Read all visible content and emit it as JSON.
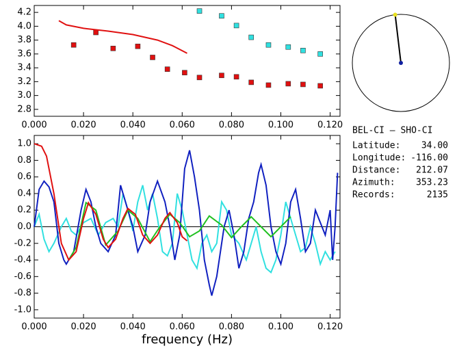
{
  "chart_data": [
    {
      "type": "scatter",
      "xlim": [
        0,
        0.124
      ],
      "ylim": [
        2.7,
        4.3
      ],
      "xticks": [
        {
          "value": 0,
          "label": "0.000"
        },
        {
          "value": 0.02,
          "label": "0.020"
        },
        {
          "value": 0.04,
          "label": "0.040"
        },
        {
          "value": 0.06,
          "label": "0.060"
        },
        {
          "value": 0.08,
          "label": "0.080"
        },
        {
          "value": 0.1,
          "label": "0.100"
        },
        {
          "value": 0.12,
          "label": "0.120"
        }
      ],
      "yticks": [
        {
          "value": 2.8,
          "label": "2.8"
        },
        {
          "value": 3.0,
          "label": "3.0"
        },
        {
          "value": 3.2,
          "label": "3.2"
        },
        {
          "value": 3.4,
          "label": "3.4"
        },
        {
          "value": 3.6,
          "label": "3.6"
        },
        {
          "value": 3.8,
          "label": "3.8"
        },
        {
          "value": 4.0,
          "label": "4.0"
        },
        {
          "value": 4.2,
          "label": "4.2"
        }
      ],
      "series": [
        {
          "style": "marker",
          "color": "#e01010",
          "x": [
            0.016,
            0.025,
            0.032,
            0.042,
            0.048,
            0.054,
            0.061,
            0.067,
            0.076,
            0.082,
            0.088,
            0.095,
            0.103,
            0.109,
            0.116
          ],
          "values": [
            3.73,
            3.91,
            3.68,
            3.71,
            3.55,
            3.38,
            3.33,
            3.26,
            3.29,
            3.27,
            3.19,
            3.15,
            3.17,
            3.16,
            3.14
          ]
        },
        {
          "style": "marker",
          "color": "#30e0e0",
          "x": [
            0.067,
            0.076,
            0.082,
            0.088,
            0.095,
            0.103,
            0.109,
            0.116
          ],
          "values": [
            4.22,
            4.15,
            4.01,
            3.84,
            3.73,
            3.7,
            3.65,
            3.6
          ]
        },
        {
          "style": "line",
          "color": "#e01010",
          "x": [
            0.01,
            0.013,
            0.02,
            0.03,
            0.04,
            0.05,
            0.056,
            0.062
          ],
          "values": [
            4.08,
            4.02,
            3.97,
            3.93,
            3.88,
            3.8,
            3.72,
            3.61
          ]
        }
      ]
    },
    {
      "type": "line",
      "xlabel": "frequency (Hz)",
      "xlim": [
        0,
        0.124
      ],
      "ylim": [
        -1.1,
        1.1
      ],
      "hline": 0,
      "xticks": [
        {
          "value": 0,
          "label": "0.000"
        },
        {
          "value": 0.02,
          "label": "0.020"
        },
        {
          "value": 0.04,
          "label": "0.040"
        },
        {
          "value": 0.06,
          "label": "0.060"
        },
        {
          "value": 0.08,
          "label": "0.080"
        },
        {
          "value": 0.1,
          "label": "0.100"
        },
        {
          "value": 0.12,
          "label": "0.120"
        }
      ],
      "yticks": [
        {
          "value": -1.0,
          "label": "-1.0"
        },
        {
          "value": -0.8,
          "label": "-0.8"
        },
        {
          "value": -0.6,
          "label": "-0.6"
        },
        {
          "value": -0.4,
          "label": "-0.4"
        },
        {
          "value": -0.2,
          "label": "-0.2"
        },
        {
          "value": 0,
          "label": "0.0"
        },
        {
          "value": 0.2,
          "label": "0.2"
        },
        {
          "value": 0.4,
          "label": "0.4"
        },
        {
          "value": 0.6,
          "label": "0.6"
        },
        {
          "value": 0.8,
          "label": "0.8"
        },
        {
          "value": 1.0,
          "label": "1.0"
        }
      ],
      "series": [
        {
          "style": "line",
          "color": "#30e0e0",
          "x": [
            0,
            0.002,
            0.004,
            0.006,
            0.008,
            0.011,
            0.013,
            0.015,
            0.017,
            0.02,
            0.023,
            0.026,
            0.029,
            0.032,
            0.034,
            0.036,
            0.038,
            0.04,
            0.042,
            0.044,
            0.046,
            0.048,
            0.05,
            0.052,
            0.054,
            0.056,
            0.058,
            0.06,
            0.062,
            0.064,
            0.066,
            0.068,
            0.07,
            0.072,
            0.074,
            0.076,
            0.078,
            0.08,
            0.083,
            0.086,
            0.088,
            0.09,
            0.092,
            0.094,
            0.096,
            0.098,
            0.1,
            0.102,
            0.104,
            0.106,
            0.108,
            0.11,
            0.112,
            0.114,
            0.116,
            0.118,
            0.12,
            0.122
          ],
          "values": [
            0,
            0.15,
            -0.15,
            -0.3,
            -0.2,
            0,
            0.1,
            -0.05,
            -0.1,
            0.05,
            0.1,
            -0.1,
            0.05,
            0.1,
            0,
            0.4,
            0.2,
            -0.05,
            0.3,
            0.5,
            0.2,
            0.4,
            0.1,
            -0.3,
            -0.35,
            -0.2,
            0.4,
            0.2,
            -0.1,
            -0.4,
            -0.5,
            -0.2,
            -0.1,
            -0.3,
            -0.2,
            0.3,
            0.2,
            -0.1,
            -0.2,
            -0.4,
            -0.2,
            0,
            -0.3,
            -0.5,
            -0.55,
            -0.4,
            -0.1,
            0.3,
            0.1,
            -0.1,
            -0.3,
            -0.25,
            0,
            -0.2,
            -0.45,
            -0.3,
            -0.4,
            -0.3
          ]
        },
        {
          "style": "line",
          "color": "#1020c0",
          "x": [
            0,
            0.002,
            0.004,
            0.006,
            0.008,
            0.01,
            0.012,
            0.013,
            0.016,
            0.019,
            0.021,
            0.023,
            0.025,
            0.027,
            0.03,
            0.033,
            0.035,
            0.037,
            0.04,
            0.042,
            0.045,
            0.047,
            0.05,
            0.053,
            0.055,
            0.057,
            0.059,
            0.061,
            0.063,
            0.065,
            0.067,
            0.069,
            0.071,
            0.072,
            0.074,
            0.077,
            0.079,
            0.081,
            0.083,
            0.085,
            0.087,
            0.089,
            0.091,
            0.092,
            0.094,
            0.096,
            0.098,
            0.1,
            0.102,
            0.104,
            0.106,
            0.108,
            0.11,
            0.112,
            0.114,
            0.116,
            0.118,
            0.12,
            0.121,
            0.122,
            0.123
          ],
          "values": [
            0,
            0.45,
            0.55,
            0.48,
            0.3,
            -0.2,
            -0.4,
            -0.45,
            -0.3,
            0.2,
            0.45,
            0.3,
            0,
            -0.2,
            -0.3,
            -0.1,
            0.5,
            0.3,
            0,
            -0.3,
            -0.1,
            0.3,
            0.55,
            0.3,
            0,
            -0.4,
            -0.1,
            0.7,
            0.92,
            0.6,
            0.2,
            -0.4,
            -0.7,
            -0.83,
            -0.6,
            0,
            0.2,
            -0.1,
            -0.5,
            -0.3,
            0.1,
            0.3,
            0.65,
            0.75,
            0.5,
            0,
            -0.3,
            -0.45,
            -0.2,
            0.3,
            0.45,
            0.1,
            -0.3,
            -0.2,
            0.2,
            0.05,
            -0.1,
            0.2,
            -0.4,
            0,
            0.65
          ]
        },
        {
          "style": "line",
          "color": "#20c020",
          "x": [
            0.014,
            0.017,
            0.021,
            0.025,
            0.029,
            0.034,
            0.038,
            0.042,
            0.047,
            0.051,
            0.055,
            0.059,
            0.063,
            0.067,
            0.071,
            0.076,
            0.08,
            0.084,
            0.088,
            0.092,
            0.096,
            0.1,
            0.104
          ],
          "values": [
            -0.4,
            -0.25,
            0.29,
            0.2,
            -0.22,
            -0.05,
            0.2,
            0.1,
            -0.18,
            0,
            0.15,
            0.05,
            -0.12,
            -0.05,
            0.13,
            0.02,
            -0.13,
            0,
            0.12,
            0,
            -0.12,
            0,
            0.12
          ]
        },
        {
          "style": "line",
          "color": "#e01010",
          "x": [
            0,
            0.003,
            0.005,
            0.008,
            0.011,
            0.014,
            0.017,
            0.02,
            0.022,
            0.025,
            0.028,
            0.03,
            0.033,
            0.036,
            0.038,
            0.041,
            0.044,
            0.047,
            0.05,
            0.053,
            0.055,
            0.058,
            0.06,
            0.062
          ],
          "values": [
            1.0,
            0.97,
            0.85,
            0.4,
            -0.2,
            -0.4,
            -0.3,
            0.1,
            0.29,
            0.15,
            -0.15,
            -0.25,
            -0.15,
            0.1,
            0.22,
            0.15,
            -0.1,
            -0.2,
            -0.1,
            0.1,
            0.17,
            0.05,
            -0.12,
            -0.17
          ]
        }
      ]
    }
  ],
  "info": {
    "title": "BEL-CI  –  SHO-CI",
    "fields": [
      {
        "label": "Latitude:",
        "value": "34.00"
      },
      {
        "label": "Longitude:",
        "value": "-116.00"
      },
      {
        "label": "Distance:",
        "value": "212.07"
      },
      {
        "label": "Azimuth:",
        "value": "353.23"
      },
      {
        "label": "Records:",
        "value": "2135"
      }
    ]
  }
}
